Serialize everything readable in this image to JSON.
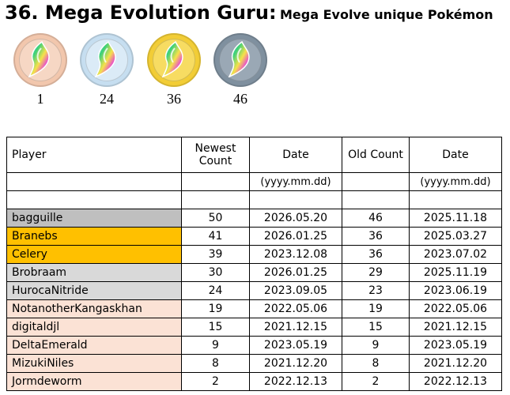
{
  "header": {
    "title": "36. Mega Evolution Guru:",
    "subtitle": "Mega Evolve unique Pokémon"
  },
  "medals": [
    {
      "label": "1",
      "tier": "bronze",
      "color": "#f2c7ad"
    },
    {
      "label": "24",
      "tier": "silver",
      "color": "#c6def0"
    },
    {
      "label": "36",
      "tier": "gold",
      "color": "#f2cd36"
    },
    {
      "label": "46",
      "tier": "platinum",
      "color": "#7f909f"
    }
  ],
  "table": {
    "headers": {
      "player": "Player",
      "newest_count": "Newest Count",
      "date_newest": "Date",
      "old_count": "Old Count",
      "date_old": "Date"
    },
    "date_format": "(yyyy.mm.dd)",
    "rows": [
      {
        "player": "bagguille",
        "newest": "50",
        "date_newest": "2026.05.20",
        "old": "46",
        "date_old": "2025.11.18",
        "color": "#bfbfbf"
      },
      {
        "player": "Branebs",
        "newest": "41",
        "date_newest": "2026.01.25",
        "old": "36",
        "date_old": "2025.03.27",
        "color": "#ffc000"
      },
      {
        "player": "Celery",
        "newest": "39",
        "date_newest": "2023.12.08",
        "old": "36",
        "date_old": "2023.07.02",
        "color": "#ffc000"
      },
      {
        "player": "Brobraam",
        "newest": "30",
        "date_newest": "2026.01.25",
        "old": "29",
        "date_old": "2025.11.19",
        "color": "#d9d9d9"
      },
      {
        "player": "HurocaNitride",
        "newest": "24",
        "date_newest": "2023.09.05",
        "old": "23",
        "date_old": "2023.06.19",
        "color": "#d9d9d9"
      },
      {
        "player": "NotanotherKangaskhan",
        "newest": "19",
        "date_newest": "2022.05.06",
        "old": "19",
        "date_old": "2022.05.06",
        "color": "#fbe2d5"
      },
      {
        "player": "digitaldjl",
        "newest": "15",
        "date_newest": "2021.12.15",
        "old": "15",
        "date_old": "2021.12.15",
        "color": "#fbe2d5"
      },
      {
        "player": "DeltaEmerald",
        "newest": "9",
        "date_newest": "2023.05.19",
        "old": "9",
        "date_old": "2023.05.19",
        "color": "#fbe2d5"
      },
      {
        "player": "MizukiNiles",
        "newest": "8",
        "date_newest": "2021.12.20",
        "old": "8",
        "date_old": "2021.12.20",
        "color": "#fbe2d5"
      },
      {
        "player": "Jormdeworm",
        "newest": "2",
        "date_newest": "2022.12.13",
        "old": "2",
        "date_old": "2022.12.13",
        "color": "#fbe2d5"
      }
    ]
  }
}
